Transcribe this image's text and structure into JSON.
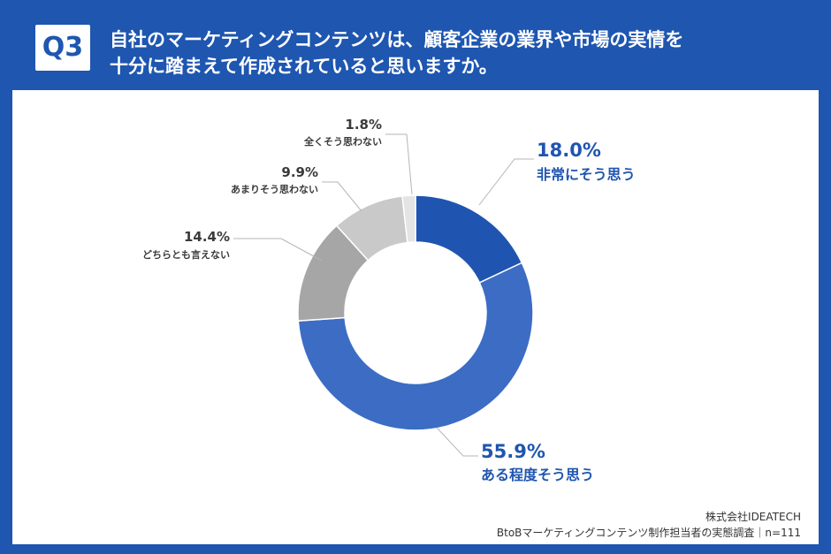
{
  "header": {
    "badge": "Q3",
    "question_line1": "自社のマーケティングコンテンツは、顧客企業の業界や市場の実情を",
    "question_line2": "十分に踏まえて作成されていると思いますか。"
  },
  "colors": {
    "frame": "#1e56b0",
    "strong_yes": "#1f55b0",
    "somewhat_yes": "#3c6cc4",
    "neutral": "#a6a6a6",
    "somewhat_no": "#c9c9c9",
    "strong_no": "#e4e4e4",
    "highlight_text": "#1f55b0",
    "muted_text": "#3a3a3a"
  },
  "chart_data": {
    "type": "pie",
    "style": "donut",
    "unit": "%",
    "slices": [
      {
        "label": "非常にそう思う",
        "value": 18.0,
        "display": "18.0%"
      },
      {
        "label": "ある程度そう思う",
        "value": 55.9,
        "display": "55.9%"
      },
      {
        "label": "どちらとも言えない",
        "value": 14.4,
        "display": "14.4%"
      },
      {
        "label": "あまりそう思わない",
        "value": 9.9,
        "display": "9.9%"
      },
      {
        "label": "全くそう思わない",
        "value": 1.8,
        "display": "1.8%"
      }
    ]
  },
  "footer": {
    "company": "株式会社IDEATECH",
    "survey": "BtoBマーケティングコンテンツ制作担当者の実態調査｜n=111"
  }
}
